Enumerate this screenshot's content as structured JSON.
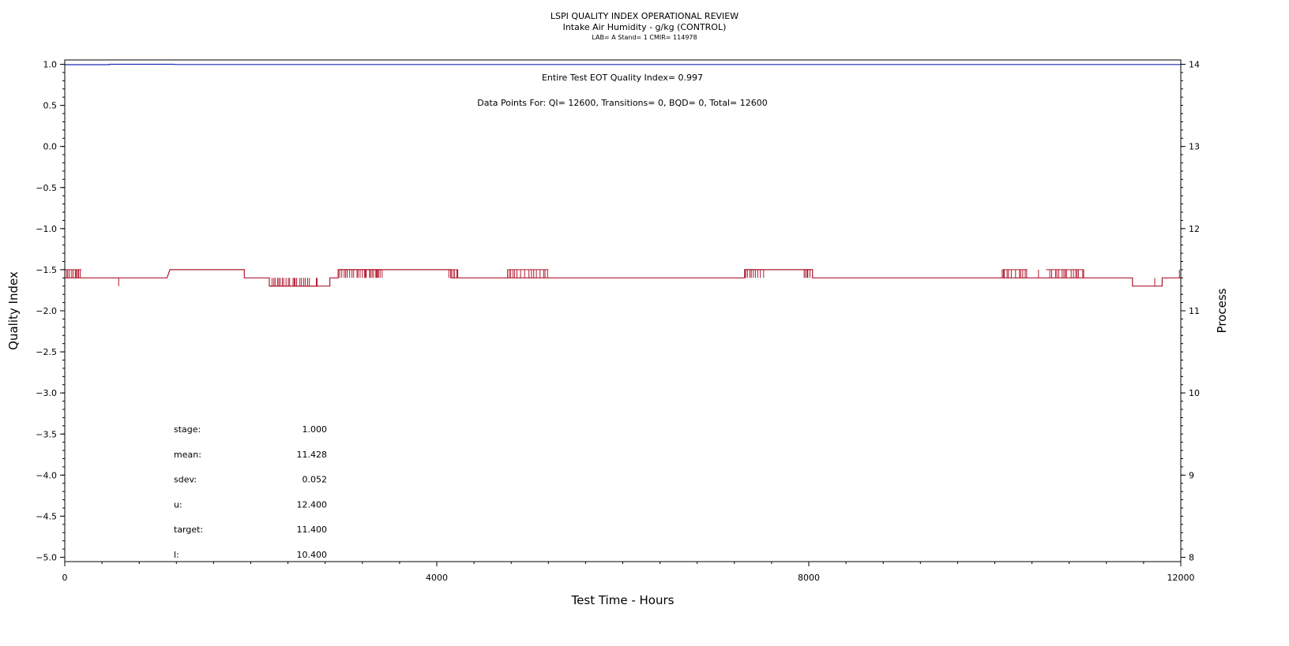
{
  "chart_data": {
    "type": "line",
    "title": "LSPI QUALITY INDEX OPERATIONAL REVIEW",
    "subtitle": "Intake Air Humidity - g/kg (CONTROL)",
    "subtitle2": "LAB= A Stand= 1 CMIR= 114978",
    "xlabel": "Test Time - Hours",
    "ylabel": "Quality Index",
    "y2label": "Process",
    "xlim": [
      0,
      12000
    ],
    "ylim": [
      -5.0,
      1.0
    ],
    "y2lim": [
      8,
      14
    ],
    "x_ticks": [
      "0",
      "4000",
      "8000",
      "12000"
    ],
    "y_ticks": [
      "1.0",
      "0.5",
      "0.0",
      "−0.5",
      "−1.0",
      "−1.5",
      "−2.0",
      "−2.5",
      "−3.0",
      "−3.5",
      "−4.0",
      "−4.5",
      "−5.0"
    ],
    "y2_ticks": [
      "14",
      "13",
      "12",
      "11",
      "10",
      "9",
      "8"
    ],
    "grid": false,
    "annotations": {
      "qi_text": "Entire Test EOT Quality Index=   0.997",
      "points_text": "Data Points For: QI= 12600, Transitions=     0, BQD=     0, Total= 12600"
    },
    "stats": [
      {
        "label": "stage:",
        "value": "1.000"
      },
      {
        "label": "mean:",
        "value": "11.428"
      },
      {
        "label": "sdev:",
        "value": "0.052"
      },
      {
        "label": "u:",
        "value": "12.400"
      },
      {
        "label": "target:",
        "value": "11.400"
      },
      {
        "label": "l:",
        "value": "10.400"
      }
    ],
    "series": [
      {
        "color": "#1f2fb0",
        "axis": "left",
        "x": [
          0,
          480,
          480,
          1180,
          1180,
          12000
        ],
        "y": [
          0.995,
          0.995,
          1.0,
          1.0,
          0.997,
          0.997
        ]
      },
      {
        "color": "#b0182e",
        "axis": "right",
        "base": 11.4,
        "segments": [
          {
            "x0": 0,
            "x1": 1100,
            "v": 11.4
          },
          {
            "x0": 1130,
            "x1": 1930,
            "v": 11.5
          },
          {
            "x0": 1930,
            "x1": 2200,
            "v": 11.4
          },
          {
            "x0": 2200,
            "x1": 2850,
            "v": 11.3
          },
          {
            "x0": 2850,
            "x1": 2940,
            "v": 11.4
          },
          {
            "x0": 2940,
            "x1": 4150,
            "v": 11.5
          },
          {
            "x0": 4150,
            "x1": 7310,
            "v": 11.4
          },
          {
            "x0": 7310,
            "x1": 8040,
            "v": 11.5
          },
          {
            "x0": 8040,
            "x1": 11480,
            "v": 11.4
          },
          {
            "x0": 11480,
            "x1": 11800,
            "v": 11.3
          },
          {
            "x0": 11800,
            "x1": 12000,
            "v": 11.4
          }
        ],
        "spike_zones": [
          {
            "x0": 0,
            "x1": 180,
            "v": 11.5
          },
          {
            "x0": 2200,
            "x1": 2720,
            "v": 11.3
          },
          {
            "x0": 2940,
            "x1": 3420,
            "v": 11.5
          },
          {
            "x0": 4130,
            "x1": 4230,
            "v": 11.5
          },
          {
            "x0": 4760,
            "x1": 5200,
            "v": 11.5
          },
          {
            "x0": 7310,
            "x1": 7520,
            "v": 11.5
          },
          {
            "x0": 7950,
            "x1": 8040,
            "v": 11.5
          },
          {
            "x0": 10080,
            "x1": 10350,
            "v": 11.5
          },
          {
            "x0": 10550,
            "x1": 10960,
            "v": 11.5
          }
        ],
        "single_spikes": [
          {
            "x": 580,
            "v": 11.3
          },
          {
            "x": 2630,
            "v": 11.3
          },
          {
            "x": 10470,
            "v": 11.5
          },
          {
            "x": 11720,
            "v": 11.3
          },
          {
            "x": 11985,
            "v": 11.5
          }
        ]
      }
    ]
  }
}
